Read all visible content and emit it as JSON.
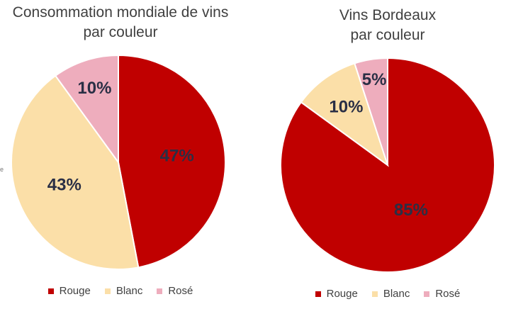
{
  "chart_data": [
    {
      "type": "pie",
      "title": "Consommation mondiale de vins par couleur",
      "title_lines": [
        "Consommation mondiale de vins",
        "par couleur"
      ],
      "slices": [
        {
          "label": "Rouge",
          "value": 47,
          "display": "47%",
          "color": "#c00000"
        },
        {
          "label": "Blanc",
          "value": 43,
          "display": "43%",
          "color": "#fbdfa8"
        },
        {
          "label": "Rosé",
          "value": 10,
          "display": "10%",
          "color": "#eeadbd"
        }
      ],
      "legend_position": "bottom"
    },
    {
      "type": "pie",
      "title": "Vins Bordeaux par couleur",
      "title_lines": [
        "Vins Bordeaux",
        "par couleur"
      ],
      "slices": [
        {
          "label": "Rouge",
          "value": 85,
          "display": "85%",
          "color": "#c00000"
        },
        {
          "label": "Blanc",
          "value": 10,
          "display": "10%",
          "color": "#fbdfa8"
        },
        {
          "label": "Rosé",
          "value": 5,
          "display": "5%",
          "color": "#eeadbd"
        }
      ],
      "legend_position": "bottom"
    }
  ],
  "stray_mark": "e"
}
